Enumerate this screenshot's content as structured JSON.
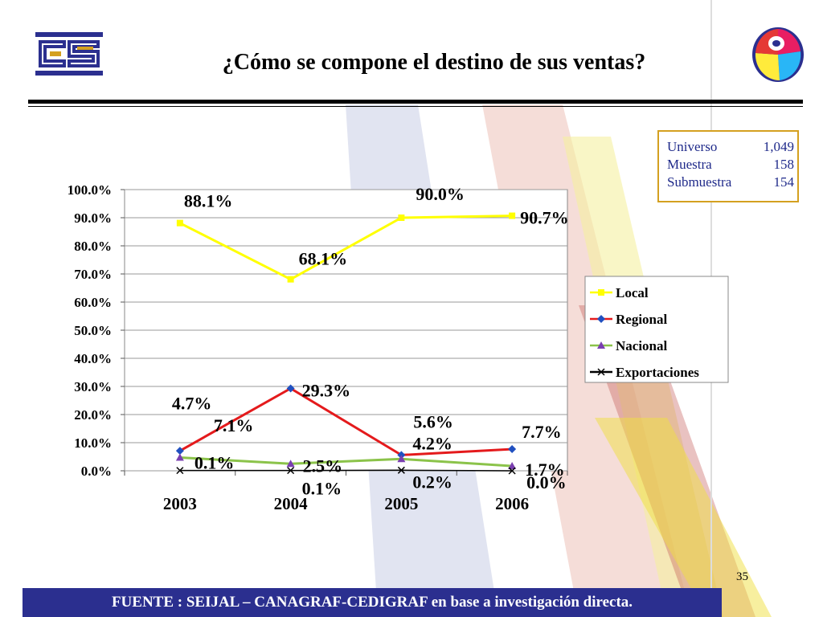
{
  "slide": {
    "title": "¿Cómo se compone el destino de sus ventas?",
    "page_number": "35",
    "footer": "FUENTE :  SEIJAL – CANAGRAF-CEDIGRAF en base a investigación directa."
  },
  "sample": {
    "rows": [
      {
        "label": "Universo",
        "value": "1,049"
      },
      {
        "label": "Muestra",
        "value": "158"
      },
      {
        "label": "Submuestra",
        "value": "154"
      }
    ]
  },
  "colors": {
    "Local": "#ffff00",
    "Regional": "#e41a1c",
    "Nacional": "#8bc34a",
    "Exportaciones": "#000000",
    "marker_regional": "#2050c0",
    "marker_nacional": "#7a3fb0"
  },
  "chart_data": {
    "type": "line",
    "categories": [
      "2003",
      "2004",
      "2005",
      "2006"
    ],
    "ylim": [
      0,
      100
    ],
    "yticks": [
      "0.0%",
      "10.0%",
      "20.0%",
      "30.0%",
      "40.0%",
      "50.0%",
      "60.0%",
      "70.0%",
      "80.0%",
      "90.0%",
      "100.0%"
    ],
    "legend_position": "right",
    "series": [
      {
        "name": "Local",
        "values": [
          88.1,
          68.1,
          90.0,
          90.7
        ],
        "labels": [
          "88.1%",
          "68.1%",
          "90.0%",
          "90.7%"
        ]
      },
      {
        "name": "Regional",
        "values": [
          7.1,
          29.3,
          5.6,
          7.7
        ],
        "labels": [
          "7.1%",
          "29.3%",
          "5.6%",
          "7.7%"
        ]
      },
      {
        "name": "Nacional",
        "values": [
          4.7,
          2.5,
          4.2,
          1.7
        ],
        "labels": [
          "4.7%",
          "2.5%",
          "4.2%",
          "1.7%"
        ]
      },
      {
        "name": "Exportaciones",
        "values": [
          0.1,
          0.1,
          0.2,
          0.0
        ],
        "labels": [
          "0.1%",
          "0.1%",
          "0.2%",
          "0.0%"
        ]
      }
    ]
  }
}
